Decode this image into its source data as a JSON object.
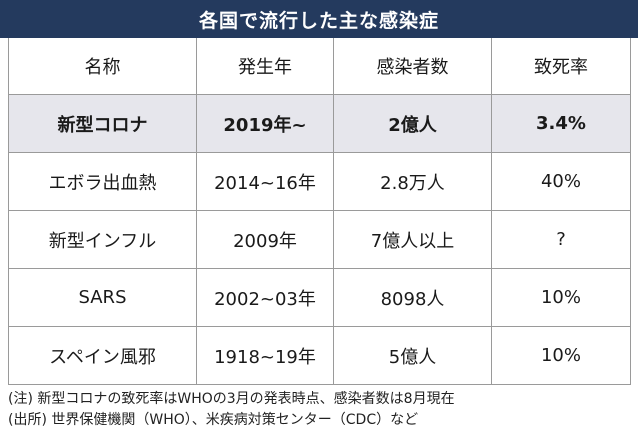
{
  "title": "各国で流行した主な感染症",
  "headers": [
    "名称",
    "発生年",
    "感染者数",
    "致死率"
  ],
  "rows": [
    {
      "name": "新型コロナ",
      "year": "2019年~",
      "infected": "2億人",
      "fatality": "3.4%"
    },
    {
      "name": "エボラ出血熱",
      "year": "2014~16年",
      "infected": "2.8万人",
      "fatality": "40%"
    },
    {
      "name": "新型インフル",
      "year": "2009年",
      "infected": "7億人以上",
      "fatality": "?"
    },
    {
      "name": "SARS",
      "year": "2002~03年",
      "infected": "8098人",
      "fatality": "10%"
    },
    {
      "name": "スペイン風邪",
      "year": "1918~19年",
      "infected": "5億人",
      "fatality": "10%"
    }
  ],
  "notes": [
    "(注) 新型コロナの致死率はWHOの3月の発表時点、感染者数は8月現在",
    "(出所) 世界保健機関（WHO）、米疾病対策センター（CDC）など"
  ]
}
